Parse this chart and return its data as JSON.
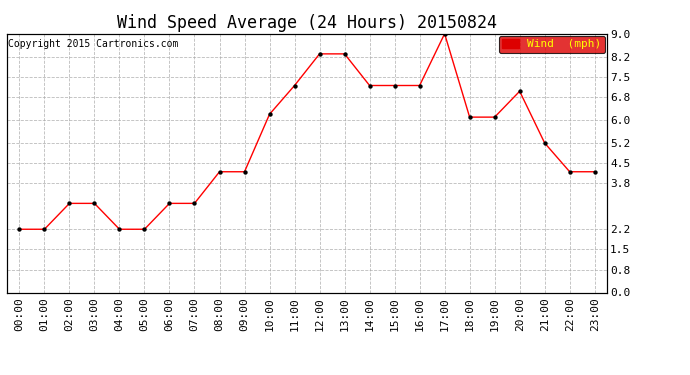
{
  "title": "Wind Speed Average (24 Hours) 20150824",
  "copyright": "Copyright 2015 Cartronics.com",
  "legend_label": "Wind  (mph)",
  "x_labels": [
    "00:00",
    "01:00",
    "02:00",
    "03:00",
    "04:00",
    "05:00",
    "06:00",
    "07:00",
    "08:00",
    "09:00",
    "10:00",
    "11:00",
    "12:00",
    "13:00",
    "14:00",
    "15:00",
    "16:00",
    "17:00",
    "18:00",
    "19:00",
    "20:00",
    "21:00",
    "22:00",
    "23:00"
  ],
  "wind_values": [
    2.2,
    2.2,
    3.1,
    3.1,
    2.2,
    2.2,
    3.1,
    3.1,
    4.2,
    4.2,
    6.2,
    7.2,
    8.3,
    8.3,
    7.2,
    7.2,
    7.2,
    9.0,
    6.1,
    6.1,
    7.0,
    5.2,
    4.2,
    4.2
  ],
  "ylim_min": 0.0,
  "ylim_max": 9.0,
  "yticks": [
    0.0,
    0.8,
    1.5,
    2.2,
    3.8,
    4.5,
    5.2,
    6.0,
    6.8,
    7.5,
    8.2,
    9.0
  ],
  "ytick_labels": [
    "0.0",
    "0.8",
    "1.5",
    "2.2",
    "3.8",
    "4.5",
    "5.2",
    "6.0",
    "6.8",
    "7.5",
    "8.2",
    "9.0"
  ],
  "line_color": "#ff0000",
  "marker_color": "#000000",
  "bg_color": "#ffffff",
  "grid_color": "#aaaaaa",
  "legend_bg": "#dd0000",
  "legend_text_color": "#ffff00",
  "title_fontsize": 12,
  "copyright_fontsize": 7,
  "tick_fontsize": 8,
  "legend_fontsize": 8
}
